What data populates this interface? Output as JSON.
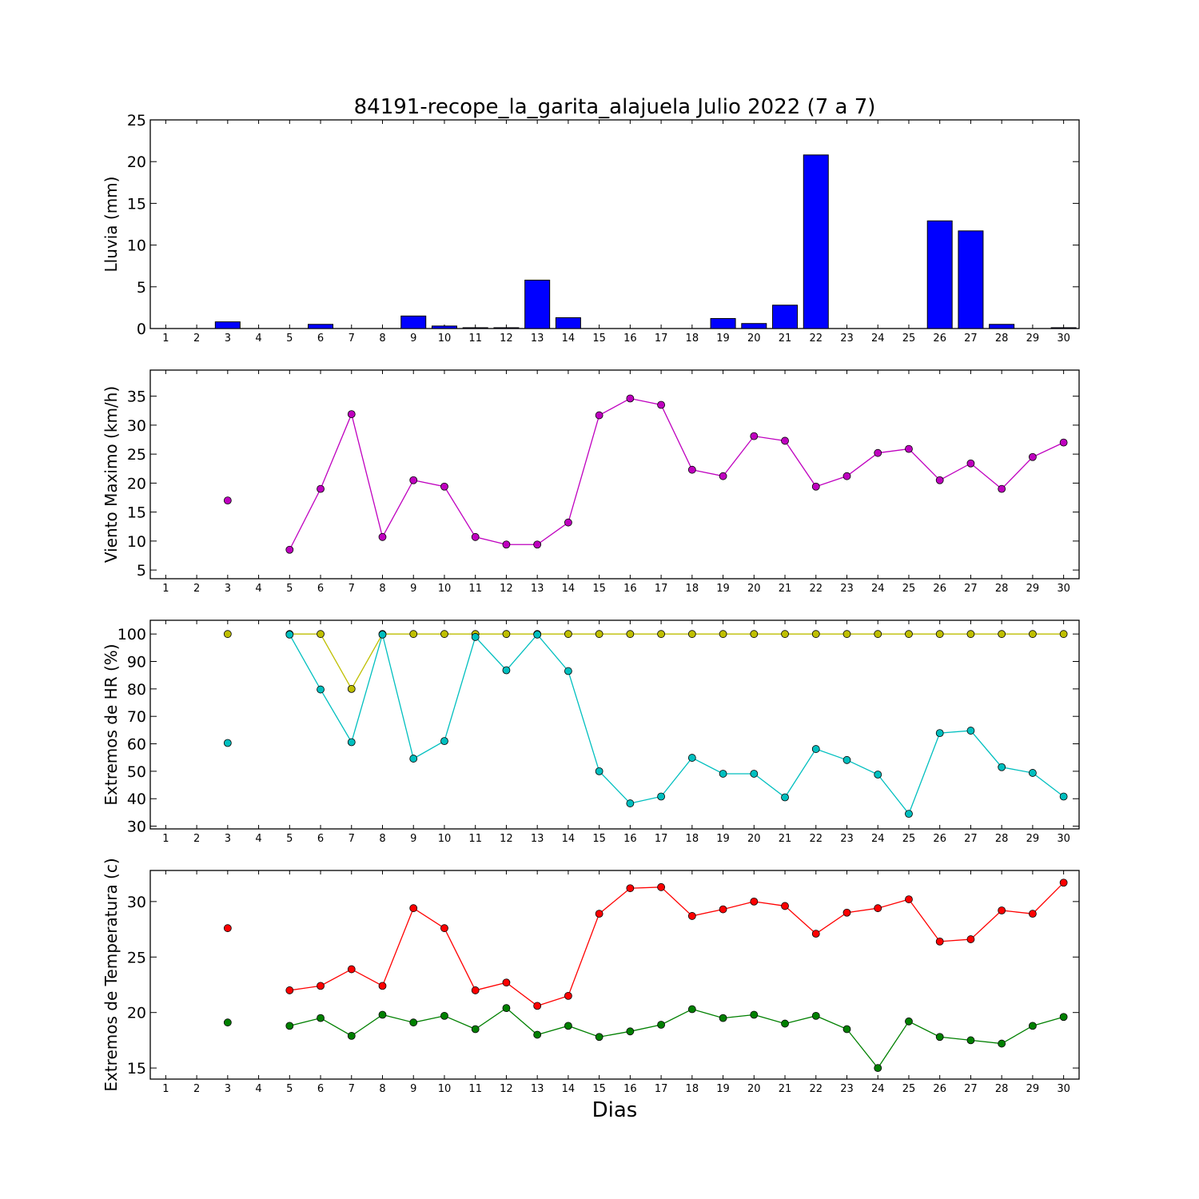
{
  "figure": {
    "title": "84191-recope_la_garita_alajuela Julio 2022  (7 a 7)",
    "xlabel": "Dias"
  },
  "chart_data": [
    {
      "type": "bar",
      "ylabel": "Lluvia (mm)",
      "ylim": [
        0,
        25
      ],
      "yticks": [
        0,
        5,
        10,
        15,
        20,
        25
      ],
      "xlim": [
        0.5,
        30.5
      ],
      "categories": [
        1,
        2,
        3,
        4,
        5,
        6,
        7,
        8,
        9,
        10,
        11,
        12,
        13,
        14,
        15,
        16,
        17,
        18,
        19,
        20,
        21,
        22,
        23,
        24,
        25,
        26,
        27,
        28,
        29,
        30
      ],
      "series": [
        {
          "color": "#0000ff",
          "values": [
            null,
            null,
            0.8,
            null,
            0,
            0.5,
            0,
            0,
            1.5,
            0.3,
            0.1,
            0.1,
            5.8,
            1.3,
            0,
            0,
            0,
            0,
            1.2,
            0.6,
            2.8,
            20.8,
            0,
            0,
            0,
            12.9,
            11.7,
            0.5,
            0,
            0.1
          ]
        }
      ]
    },
    {
      "type": "line",
      "ylabel": "Viento Maximo (km/h)",
      "ylim": [
        3.5,
        39.5
      ],
      "yticks": [
        5,
        10,
        15,
        20,
        25,
        30,
        35
      ],
      "xlim": [
        0.5,
        30.5
      ],
      "categories": [
        1,
        2,
        3,
        4,
        5,
        6,
        7,
        8,
        9,
        10,
        11,
        12,
        13,
        14,
        15,
        16,
        17,
        18,
        19,
        20,
        21,
        22,
        23,
        24,
        25,
        26,
        27,
        28,
        29,
        30
      ],
      "series": [
        {
          "color": "#bf00bf",
          "values": [
            null,
            null,
            17.0,
            null,
            8.5,
            19.0,
            31.9,
            10.7,
            20.5,
            19.4,
            10.7,
            9.4,
            9.4,
            13.2,
            31.7,
            34.6,
            33.5,
            22.3,
            21.2,
            28.1,
            27.3,
            19.4,
            21.2,
            25.2,
            25.9,
            20.5,
            23.4,
            19.0,
            24.5,
            27.0
          ]
        }
      ]
    },
    {
      "type": "line",
      "ylabel": "Extremos de HR (%)",
      "ylim": [
        29,
        105
      ],
      "yticks": [
        30,
        40,
        50,
        60,
        70,
        80,
        90,
        100
      ],
      "xlim": [
        0.5,
        30.5
      ],
      "categories": [
        1,
        2,
        3,
        4,
        5,
        6,
        7,
        8,
        9,
        10,
        11,
        12,
        13,
        14,
        15,
        16,
        17,
        18,
        19,
        20,
        21,
        22,
        23,
        24,
        25,
        26,
        27,
        28,
        29,
        30
      ],
      "series": [
        {
          "color": "#bfbf00",
          "values": [
            null,
            null,
            100,
            null,
            100,
            100,
            80,
            100,
            100,
            100,
            100,
            100,
            100,
            100,
            100,
            100,
            100,
            100,
            100,
            100,
            100,
            100,
            100,
            100,
            100,
            100,
            100,
            100,
            100,
            100
          ]
        },
        {
          "color": "#00bfbf",
          "values": [
            null,
            null,
            60.3,
            null,
            99.8,
            79.8,
            60.6,
            99.8,
            54.6,
            61.0,
            98.9,
            86.8,
            99.8,
            86.5,
            50.0,
            38.3,
            40.8,
            54.9,
            49.1,
            49.1,
            40.5,
            58.1,
            54.1,
            48.8,
            34.5,
            63.9,
            64.8,
            51.5,
            49.4,
            40.8
          ]
        }
      ]
    },
    {
      "type": "line",
      "ylabel": "Extremos de Temperatura (c)",
      "ylim": [
        14,
        32.8
      ],
      "yticks": [
        15,
        20,
        25,
        30
      ],
      "xlim": [
        0.5,
        30.5
      ],
      "categories": [
        1,
        2,
        3,
        4,
        5,
        6,
        7,
        8,
        9,
        10,
        11,
        12,
        13,
        14,
        15,
        16,
        17,
        18,
        19,
        20,
        21,
        22,
        23,
        24,
        25,
        26,
        27,
        28,
        29,
        30
      ],
      "series": [
        {
          "color": "#ff0000",
          "values": [
            null,
            null,
            27.6,
            null,
            22.0,
            22.4,
            23.9,
            22.4,
            29.4,
            27.6,
            22.0,
            22.7,
            20.6,
            21.5,
            28.9,
            31.2,
            31.3,
            28.7,
            29.3,
            30.0,
            29.6,
            27.1,
            29.0,
            29.4,
            30.2,
            26.4,
            26.6,
            29.2,
            28.9,
            31.7
          ]
        },
        {
          "color": "#008000",
          "values": [
            null,
            null,
            19.1,
            null,
            18.8,
            19.5,
            17.9,
            19.8,
            19.1,
            19.7,
            18.5,
            20.4,
            18.0,
            18.8,
            17.8,
            18.3,
            18.9,
            20.3,
            19.5,
            19.8,
            19.0,
            19.7,
            18.5,
            15.0,
            19.2,
            17.8,
            17.5,
            17.2,
            18.8,
            19.6
          ]
        }
      ]
    }
  ]
}
